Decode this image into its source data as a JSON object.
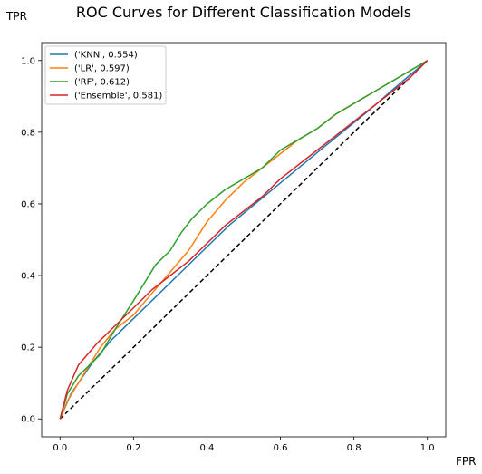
{
  "chart_data": {
    "type": "line",
    "title": "ROC Curves for Different Classification Models",
    "xlabel": "FPR",
    "ylabel": "TPR",
    "xlim": [
      -0.05,
      1.05
    ],
    "ylim": [
      -0.05,
      1.05
    ],
    "xticks": [
      0.0,
      0.2,
      0.4,
      0.6,
      0.8,
      1.0
    ],
    "yticks": [
      0.0,
      0.2,
      0.4,
      0.6,
      0.8,
      1.0
    ],
    "tick_labels": [
      "0.0",
      "0.2",
      "0.4",
      "0.6",
      "0.8",
      "1.0"
    ],
    "grid": false,
    "legend_position": "top-left",
    "series": [
      {
        "name": "('KNN', 0.554)",
        "color": "#1f77b4",
        "x": [
          0,
          0.03,
          0.09,
          0.14,
          0.24,
          0.34,
          0.46,
          0.59,
          0.72,
          0.84,
          0.93,
          1.0
        ],
        "y": [
          0,
          0.07,
          0.16,
          0.22,
          0.32,
          0.42,
          0.54,
          0.65,
          0.76,
          0.86,
          0.94,
          1.0
        ]
      },
      {
        "name": "('LR', 0.597)",
        "color": "#ff7f0e",
        "x": [
          0,
          0.02,
          0.05,
          0.08,
          0.11,
          0.15,
          0.2,
          0.25,
          0.3,
          0.35,
          0.4,
          0.45,
          0.5,
          0.55,
          0.6,
          0.65,
          0.7,
          0.75,
          0.8,
          0.85,
          0.9,
          0.95,
          1.0
        ],
        "y": [
          0,
          0.05,
          0.1,
          0.15,
          0.2,
          0.25,
          0.29,
          0.35,
          0.41,
          0.47,
          0.55,
          0.61,
          0.66,
          0.7,
          0.74,
          0.78,
          0.81,
          0.85,
          0.88,
          0.91,
          0.94,
          0.97,
          1.0
        ]
      },
      {
        "name": "('RF', 0.612)",
        "color": "#2ca02c",
        "x": [
          0,
          0.02,
          0.05,
          0.08,
          0.11,
          0.15,
          0.2,
          0.23,
          0.26,
          0.3,
          0.33,
          0.36,
          0.4,
          0.45,
          0.5,
          0.55,
          0.6,
          0.65,
          0.7,
          0.75,
          0.8,
          0.85,
          0.9,
          0.95,
          1.0
        ],
        "y": [
          0,
          0.07,
          0.12,
          0.15,
          0.18,
          0.25,
          0.33,
          0.38,
          0.43,
          0.47,
          0.52,
          0.56,
          0.6,
          0.64,
          0.67,
          0.7,
          0.75,
          0.78,
          0.81,
          0.85,
          0.88,
          0.91,
          0.94,
          0.97,
          1.0
        ]
      },
      {
        "name": "('Ensemble', 0.581)",
        "color": "#d62728",
        "x": [
          0,
          0.02,
          0.05,
          0.1,
          0.15,
          0.2,
          0.25,
          0.3,
          0.35,
          0.4,
          0.45,
          0.5,
          0.55,
          0.6,
          0.65,
          0.7,
          0.75,
          0.8,
          0.85,
          0.9,
          0.95,
          1.0
        ],
        "y": [
          0,
          0.08,
          0.15,
          0.21,
          0.26,
          0.31,
          0.36,
          0.4,
          0.44,
          0.49,
          0.54,
          0.58,
          0.62,
          0.67,
          0.71,
          0.75,
          0.79,
          0.83,
          0.87,
          0.91,
          0.95,
          1.0
        ]
      }
    ],
    "reference_line": {
      "color": "#000000",
      "style": "dashed",
      "x": [
        0,
        1
      ],
      "y": [
        0,
        1
      ]
    }
  }
}
